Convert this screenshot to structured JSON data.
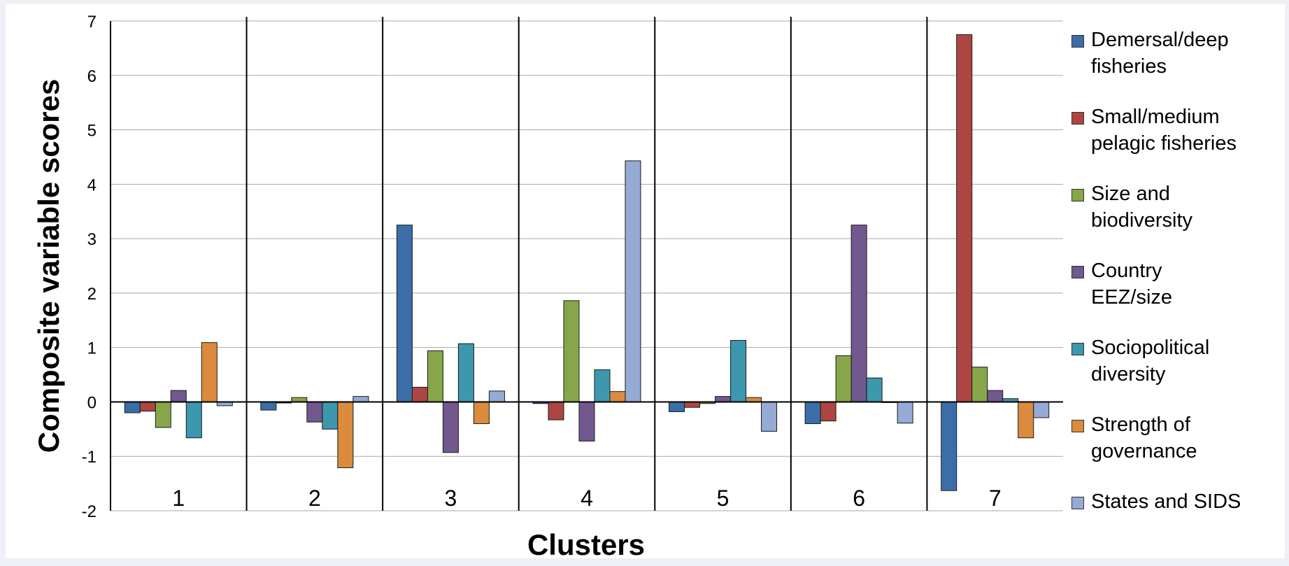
{
  "chart_data": {
    "type": "bar",
    "xlabel": "Clusters",
    "ylabel": "Composite variable scores",
    "ylim": [
      -2,
      7
    ],
    "yticks": [
      -2,
      -1,
      0,
      1,
      2,
      3,
      4,
      5,
      6,
      7
    ],
    "categories": [
      "1",
      "2",
      "3",
      "4",
      "5",
      "6",
      "7"
    ],
    "grid": "horizontal",
    "legend_position": "right",
    "series": [
      {
        "name": "Demersal/deep\nfisheries",
        "color": "#3b6ea8",
        "values": [
          -0.2,
          -0.15,
          3.25,
          -0.03,
          -0.18,
          -0.4,
          -1.63
        ]
      },
      {
        "name": "Small/medium\npelagic fisheries",
        "color": "#ad4643",
        "values": [
          -0.17,
          -0.02,
          0.27,
          -0.33,
          -0.1,
          -0.35,
          6.75
        ]
      },
      {
        "name": "Size and\nbiodiversity",
        "color": "#87a64a",
        "values": [
          -0.47,
          0.08,
          0.94,
          1.86,
          -0.03,
          0.85,
          0.64
        ]
      },
      {
        "name": "Country\nEEZ/size",
        "color": "#71588f",
        "values": [
          0.21,
          -0.37,
          -0.93,
          -0.72,
          0.1,
          3.25,
          0.21
        ]
      },
      {
        "name": "Sociopolitical\ndiversity",
        "color": "#3d97ad",
        "values": [
          -0.66,
          -0.5,
          1.07,
          0.59,
          1.13,
          0.44,
          0.06
        ]
      },
      {
        "name": "Strength of\ngovernance",
        "color": "#db8b3e",
        "values": [
          1.09,
          -1.21,
          -0.4,
          0.19,
          0.08,
          -0.01,
          -0.66
        ]
      },
      {
        "name": "States and SIDS",
        "color": "#95aad4",
        "values": [
          -0.07,
          0.1,
          0.2,
          4.43,
          -0.54,
          -0.39,
          -0.29
        ]
      }
    ]
  }
}
